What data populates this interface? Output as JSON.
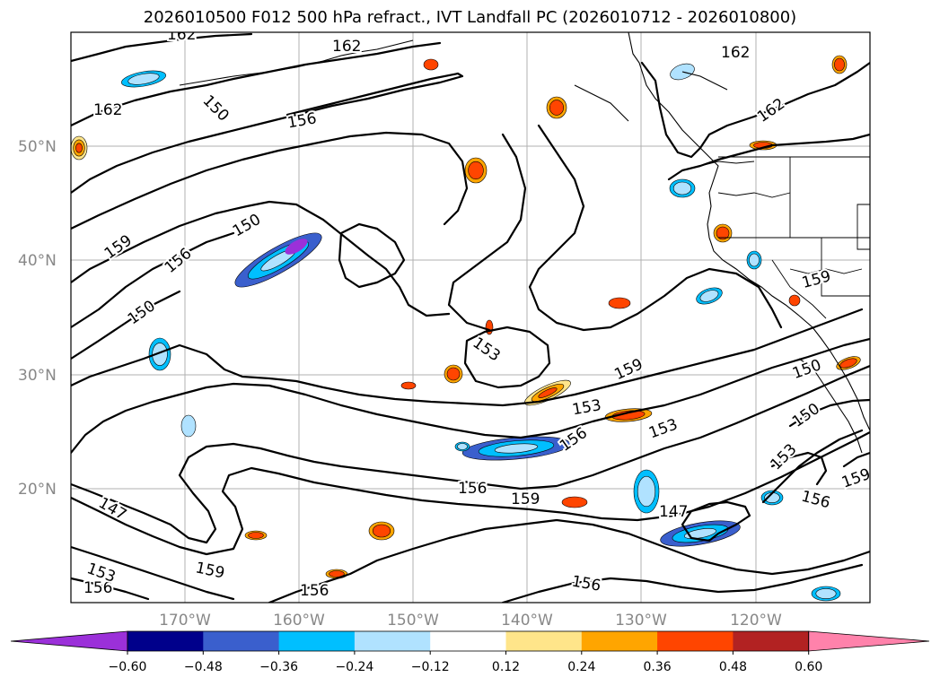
{
  "title": "2026010500 F012 500 hPa refract., IVT Landfall PC (2026010712 - 2026010800)",
  "lat_labels": [
    "50°N",
    "40°N",
    "30°N",
    "20°N"
  ],
  "lon_labels": [
    "170°W",
    "160°W",
    "150°W",
    "140°W",
    "130°W",
    "120°W"
  ],
  "contour_labels": [
    "162",
    "162",
    "162",
    "162",
    "162",
    "159",
    "159",
    "159",
    "159",
    "159",
    "159",
    "156",
    "156",
    "156",
    "156",
    "156",
    "156",
    "156",
    "156",
    "153",
    "153",
    "153",
    "153",
    "153",
    "150",
    "150",
    "150",
    "150",
    "150",
    "147",
    "147"
  ],
  "colorbar": {
    "ticks": [
      "−0.60",
      "−0.48",
      "−0.36",
      "−0.24",
      "−0.12",
      "0.12",
      "0.24",
      "0.36",
      "0.48",
      "0.60"
    ],
    "colors": [
      "#9b30d9",
      "#00008b",
      "#3a5fcd",
      "#00bfff",
      "#b0e2ff",
      "#ffffff",
      "#ffe58a",
      "#ffa500",
      "#ff4500",
      "#b22222",
      "#ff82ab"
    ]
  },
  "map_colors": {
    "background": "#ffffff",
    "grid": "#b0b0b0",
    "contour": "#000000"
  }
}
